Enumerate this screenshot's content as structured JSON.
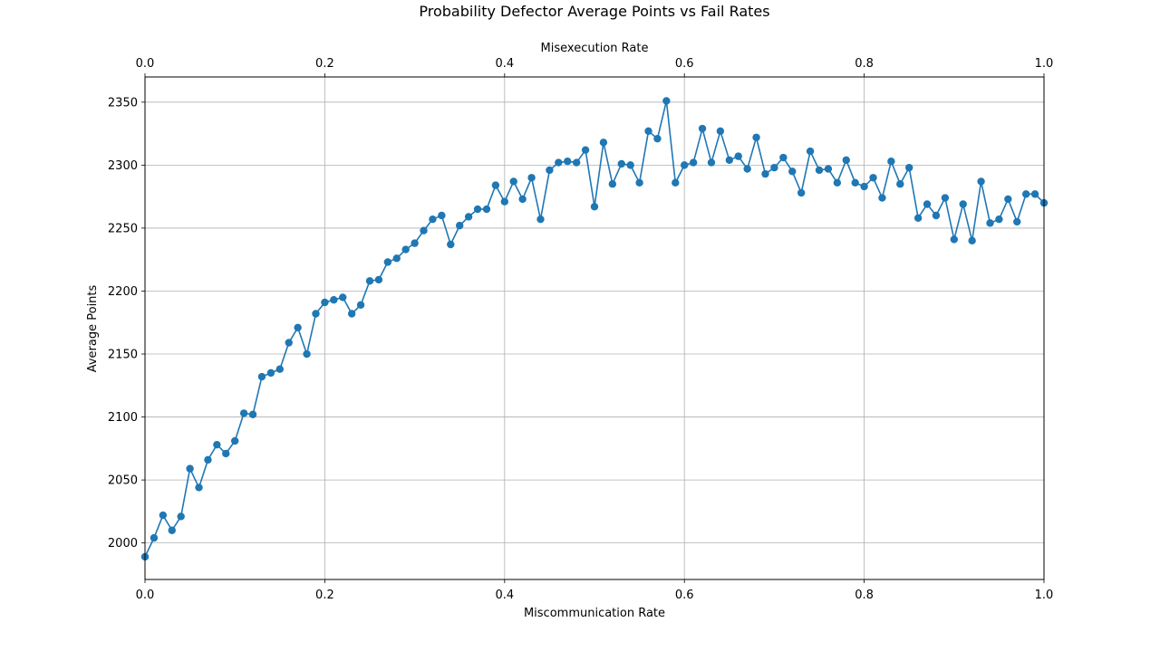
{
  "chart_data": {
    "type": "line",
    "title": "Probability Defector Average Points vs Fail Rates",
    "xlabel": "Miscommunication Rate",
    "x2label": "Misexecution Rate",
    "ylabel": "Average Points",
    "xlim": [
      0.0,
      1.0
    ],
    "ylim": [
      1971,
      2370
    ],
    "grid": true,
    "x_ticks": [
      "0.0",
      "0.2",
      "0.4",
      "0.6",
      "0.8",
      "1.0"
    ],
    "x2_ticks": [
      "0.0",
      "0.2",
      "0.4",
      "0.6",
      "0.8",
      "1.0"
    ],
    "y_ticks": [
      "2000",
      "2050",
      "2100",
      "2150",
      "2200",
      "2250",
      "2300",
      "2350"
    ],
    "series": [
      {
        "color": "#1f77b4",
        "marker": "circle",
        "x": [
          0.0,
          0.01,
          0.02,
          0.03,
          0.04,
          0.05,
          0.06,
          0.07,
          0.08,
          0.09,
          0.1,
          0.11,
          0.12,
          0.13,
          0.14,
          0.15,
          0.16,
          0.17,
          0.18,
          0.19,
          0.2,
          0.21,
          0.22,
          0.23,
          0.24,
          0.25,
          0.26,
          0.27,
          0.28,
          0.29,
          0.3,
          0.31,
          0.32,
          0.33,
          0.34,
          0.35,
          0.36,
          0.37,
          0.38,
          0.39,
          0.4,
          0.41,
          0.42,
          0.43,
          0.44,
          0.45,
          0.46,
          0.47,
          0.48,
          0.49,
          0.5,
          0.51,
          0.52,
          0.53,
          0.54,
          0.55,
          0.56,
          0.57,
          0.58,
          0.59,
          0.6,
          0.61,
          0.62,
          0.63,
          0.64,
          0.65,
          0.66,
          0.67,
          0.68,
          0.69,
          0.7,
          0.71,
          0.72,
          0.73,
          0.74,
          0.75,
          0.76,
          0.77,
          0.78,
          0.79,
          0.8,
          0.81,
          0.82,
          0.83,
          0.84,
          0.85,
          0.86,
          0.87,
          0.88,
          0.89,
          0.9,
          0.91,
          0.92,
          0.93,
          0.94,
          0.95,
          0.96,
          0.97,
          0.98,
          0.99,
          1.0
        ],
        "values": [
          1989,
          2004,
          2022,
          2010,
          2021,
          2059,
          2044,
          2066,
          2078,
          2071,
          2081,
          2103,
          2102,
          2132,
          2135,
          2138,
          2159,
          2171,
          2150,
          2182,
          2191,
          2193,
          2195,
          2182,
          2189,
          2208,
          2209,
          2223,
          2226,
          2233,
          2238,
          2248,
          2257,
          2260,
          2237,
          2252,
          2259,
          2265,
          2265,
          2284,
          2271,
          2287,
          2273,
          2290,
          2257,
          2296,
          2302,
          2303,
          2302,
          2312,
          2267,
          2318,
          2285,
          2301,
          2300,
          2286,
          2327,
          2321,
          2351,
          2286,
          2300,
          2302,
          2329,
          2302,
          2327,
          2304,
          2307,
          2297,
          2322,
          2293,
          2298,
          2306,
          2295,
          2278,
          2311,
          2296,
          2297,
          2286,
          2304,
          2286,
          2283,
          2290,
          2274,
          2303,
          2285,
          2298,
          2258,
          2269,
          2260,
          2274,
          2241,
          2269,
          2240,
          2287,
          2254,
          2257,
          2273,
          2255,
          2277,
          2277,
          2270
        ]
      }
    ]
  }
}
